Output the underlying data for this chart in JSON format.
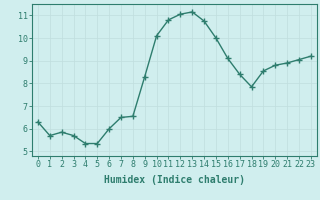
{
  "x": [
    0,
    1,
    2,
    3,
    4,
    5,
    6,
    7,
    8,
    9,
    10,
    11,
    12,
    13,
    14,
    15,
    16,
    17,
    18,
    19,
    20,
    21,
    22,
    23
  ],
  "y": [
    6.3,
    5.7,
    5.85,
    5.7,
    5.35,
    5.35,
    6.0,
    6.5,
    6.55,
    8.3,
    10.1,
    10.8,
    11.05,
    11.15,
    10.75,
    10.0,
    9.1,
    8.4,
    7.85,
    8.55,
    8.8,
    8.9,
    9.05,
    9.2
  ],
  "line_color": "#2e7d6e",
  "marker": "+",
  "background_color": "#d0eeee",
  "grid_color": "#c0dede",
  "xlabel": "Humidex (Indice chaleur)",
  "xlim": [
    -0.5,
    23.5
  ],
  "ylim": [
    4.8,
    11.5
  ],
  "yticks": [
    5,
    6,
    7,
    8,
    9,
    10,
    11
  ],
  "xticks": [
    0,
    1,
    2,
    3,
    4,
    5,
    6,
    7,
    8,
    9,
    10,
    11,
    12,
    13,
    14,
    15,
    16,
    17,
    18,
    19,
    20,
    21,
    22,
    23
  ],
  "tick_color": "#2e7d6e",
  "axis_color": "#2e7d6e",
  "fontsize_label": 7,
  "fontsize_tick": 6,
  "line_width": 1.0,
  "marker_size": 4
}
